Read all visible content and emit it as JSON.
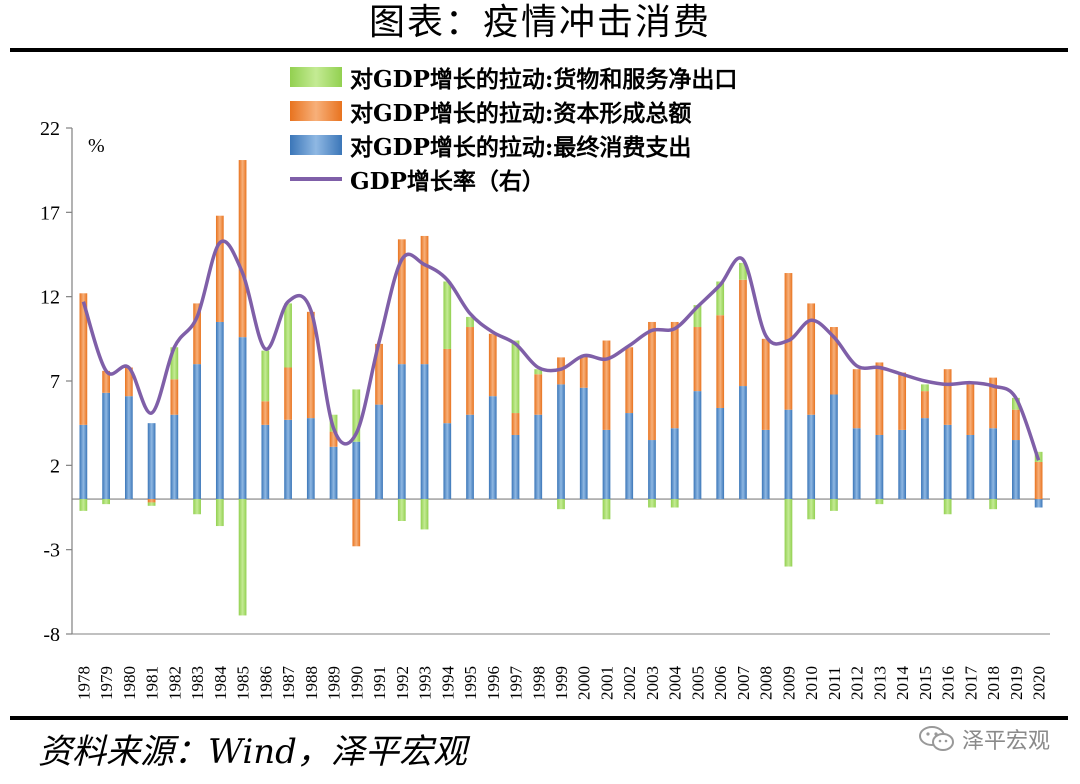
{
  "page": {
    "title": "图表：疫情冲击消费",
    "source": "资料来源：Wind，泽平宏观",
    "watermark": "泽平宏观"
  },
  "chart_data": {
    "type": "bar",
    "stacked": true,
    "unit_label": "%",
    "categories": [
      "1978",
      "1979",
      "1980",
      "1981",
      "1982",
      "1983",
      "1984",
      "1985",
      "1986",
      "1987",
      "1988",
      "1989",
      "1990",
      "1991",
      "1992",
      "1993",
      "1994",
      "1995",
      "1996",
      "1997",
      "1998",
      "1999",
      "2000",
      "2001",
      "2002",
      "2003",
      "2004",
      "2005",
      "2006",
      "2007",
      "2008",
      "2009",
      "2010",
      "2011",
      "2012",
      "2013",
      "2014",
      "2015",
      "2016",
      "2017",
      "2018",
      "2019",
      "2020"
    ],
    "y_ticks": [
      22,
      17,
      12,
      7,
      2,
      -3,
      -8
    ],
    "ylim": [
      -8,
      22
    ],
    "series": [
      {
        "name": "对GDP增长的拉动:货物和服务净出口",
        "color": "#92d050",
        "values": [
          -0.7,
          -0.3,
          0.0,
          -0.2,
          1.9,
          -0.9,
          -1.6,
          -6.9,
          3.0,
          3.8,
          0.0,
          1.0,
          3.1,
          0.0,
          -1.3,
          -1.8,
          4.0,
          0.6,
          0.0,
          4.3,
          0.3,
          -0.6,
          0.0,
          -1.2,
          0.0,
          -0.5,
          -0.5,
          1.3,
          2.0,
          1.0,
          0.0,
          -4.0,
          -1.2,
          -0.7,
          0.0,
          -0.3,
          0.0,
          0.4,
          -0.9,
          0.0,
          -0.6,
          0.7,
          0.6
        ]
      },
      {
        "name": "对GDP增长的拉动:资本形成总额",
        "color": "#ed7d31",
        "values": [
          7.8,
          1.3,
          1.7,
          -0.2,
          2.1,
          3.6,
          6.3,
          10.5,
          1.4,
          3.1,
          6.3,
          0.9,
          -2.8,
          3.6,
          7.4,
          7.6,
          4.4,
          5.2,
          3.7,
          1.3,
          2.4,
          1.6,
          1.9,
          5.3,
          3.9,
          7.0,
          6.3,
          3.8,
          5.5,
          6.3,
          5.4,
          8.1,
          6.6,
          4.0,
          3.5,
          4.3,
          3.4,
          1.6,
          3.3,
          3.0,
          3.0,
          1.8,
          2.2
        ]
      },
      {
        "name": "对GDP增长的拉动:最终消费支出",
        "color": "#4a86c5",
        "values": [
          4.4,
          6.3,
          6.1,
          4.5,
          5.0,
          8.0,
          10.5,
          9.6,
          4.4,
          4.7,
          4.8,
          3.1,
          3.4,
          5.6,
          8.0,
          8.0,
          4.5,
          5.0,
          6.1,
          3.8,
          5.0,
          6.8,
          6.6,
          4.1,
          5.1,
          3.5,
          4.2,
          6.4,
          5.4,
          6.7,
          4.1,
          5.3,
          5.0,
          6.2,
          4.2,
          3.8,
          4.1,
          4.8,
          4.4,
          3.8,
          4.2,
          3.5,
          -0.5
        ]
      }
    ],
    "line_series": {
      "name": "GDP增长率（右）",
      "color": "#7f5fa8",
      "values": [
        11.7,
        7.6,
        7.8,
        5.1,
        9.0,
        10.8,
        15.2,
        13.4,
        8.9,
        11.7,
        11.2,
        4.2,
        3.9,
        9.3,
        14.2,
        13.9,
        13.0,
        11.0,
        9.9,
        9.2,
        7.8,
        7.7,
        8.5,
        8.3,
        9.1,
        10.0,
        10.1,
        11.4,
        12.7,
        14.2,
        9.7,
        9.4,
        10.6,
        9.6,
        7.9,
        7.8,
        7.4,
        7.0,
        6.8,
        6.9,
        6.7,
        6.0,
        2.3
      ]
    }
  }
}
